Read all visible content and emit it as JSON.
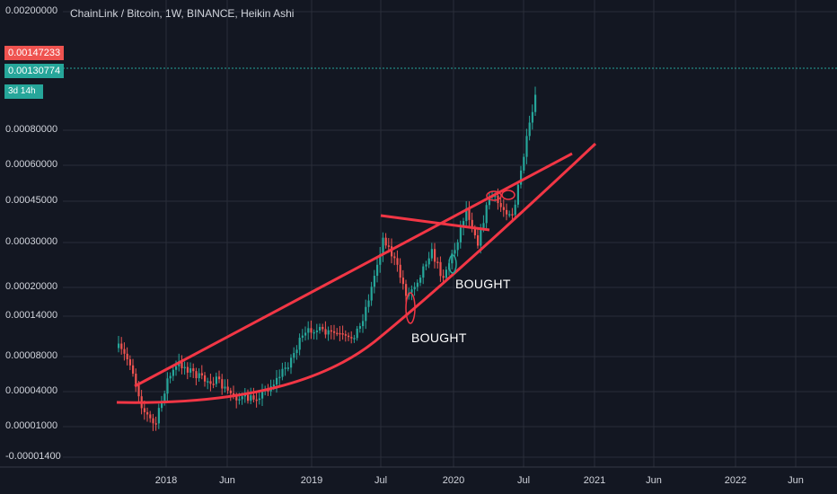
{
  "chart_title": "ChainLink / Bitcoin, 1W, BINANCE, Heikin Ashi",
  "price_badges": {
    "high": "0.00147233",
    "current": "0.00130774",
    "countdown": "3d 14h"
  },
  "chart_data": {
    "type": "candlestick",
    "title": "ChainLink / Bitcoin, 1W, BINANCE, Heikin Ashi",
    "y_tick_labels": [
      "0.00200000",
      "0.00080000",
      "0.00060000",
      "0.00045000",
      "0.00030000",
      "0.00020000",
      "0.00014000",
      "0.00008000",
      "0.00004000",
      "0.00001000",
      "-0.00001400"
    ],
    "x_tick_labels": [
      "2018",
      "Jun",
      "2019",
      "Jul",
      "2020",
      "Jul",
      "2021",
      "Jun",
      "2022",
      "Jun"
    ],
    "current_price": 0.00130774,
    "last_high": 0.00147233,
    "colors": {
      "up": "#26a69a",
      "down": "#ef5350",
      "drawing": "#f23645",
      "background": "#131722"
    },
    "annotations": [
      {
        "text": "BOUGHT",
        "date": "2019-09"
      },
      {
        "text": "BOUGHT",
        "date": "2019-12"
      }
    ],
    "price_path": [
      [
        "2017-09",
        9e-05
      ],
      [
        "2017-10",
        7e-05
      ],
      [
        "2017-11",
        2e-05
      ],
      [
        "2017-12",
        1e-05
      ],
      [
        "2018-01",
        5e-05
      ],
      [
        "2018-02",
        7e-05
      ],
      [
        "2018-03",
        6e-05
      ],
      [
        "2018-04",
        5e-05
      ],
      [
        "2018-05",
        5e-05
      ],
      [
        "2018-06",
        4e-05
      ],
      [
        "2018-07",
        3e-05
      ],
      [
        "2018-08",
        3e-05
      ],
      [
        "2018-09",
        4e-05
      ],
      [
        "2018-10",
        5e-05
      ],
      [
        "2018-11",
        7e-05
      ],
      [
        "2018-12",
        0.0001
      ],
      [
        "2019-01",
        0.00012
      ],
      [
        "2019-02",
        0.00011
      ],
      [
        "2019-03",
        0.00011
      ],
      [
        "2019-04",
        0.0001
      ],
      [
        "2019-05",
        0.00012
      ],
      [
        "2019-06",
        0.0002
      ],
      [
        "2019-07",
        0.00032
      ],
      [
        "2019-08",
        0.00025
      ],
      [
        "2019-09",
        0.00018
      ],
      [
        "2019-10",
        0.00022
      ],
      [
        "2019-11",
        0.00028
      ],
      [
        "2019-12",
        0.00022
      ],
      [
        "2020-01",
        0.00028
      ],
      [
        "2020-02",
        0.00042
      ],
      [
        "2020-03",
        0.0003
      ],
      [
        "2020-04",
        0.00048
      ],
      [
        "2020-05",
        0.00042
      ],
      [
        "2020-06",
        0.0004
      ],
      [
        "2020-07",
        0.0007
      ],
      [
        "2020-08",
        0.0012
      ]
    ]
  }
}
